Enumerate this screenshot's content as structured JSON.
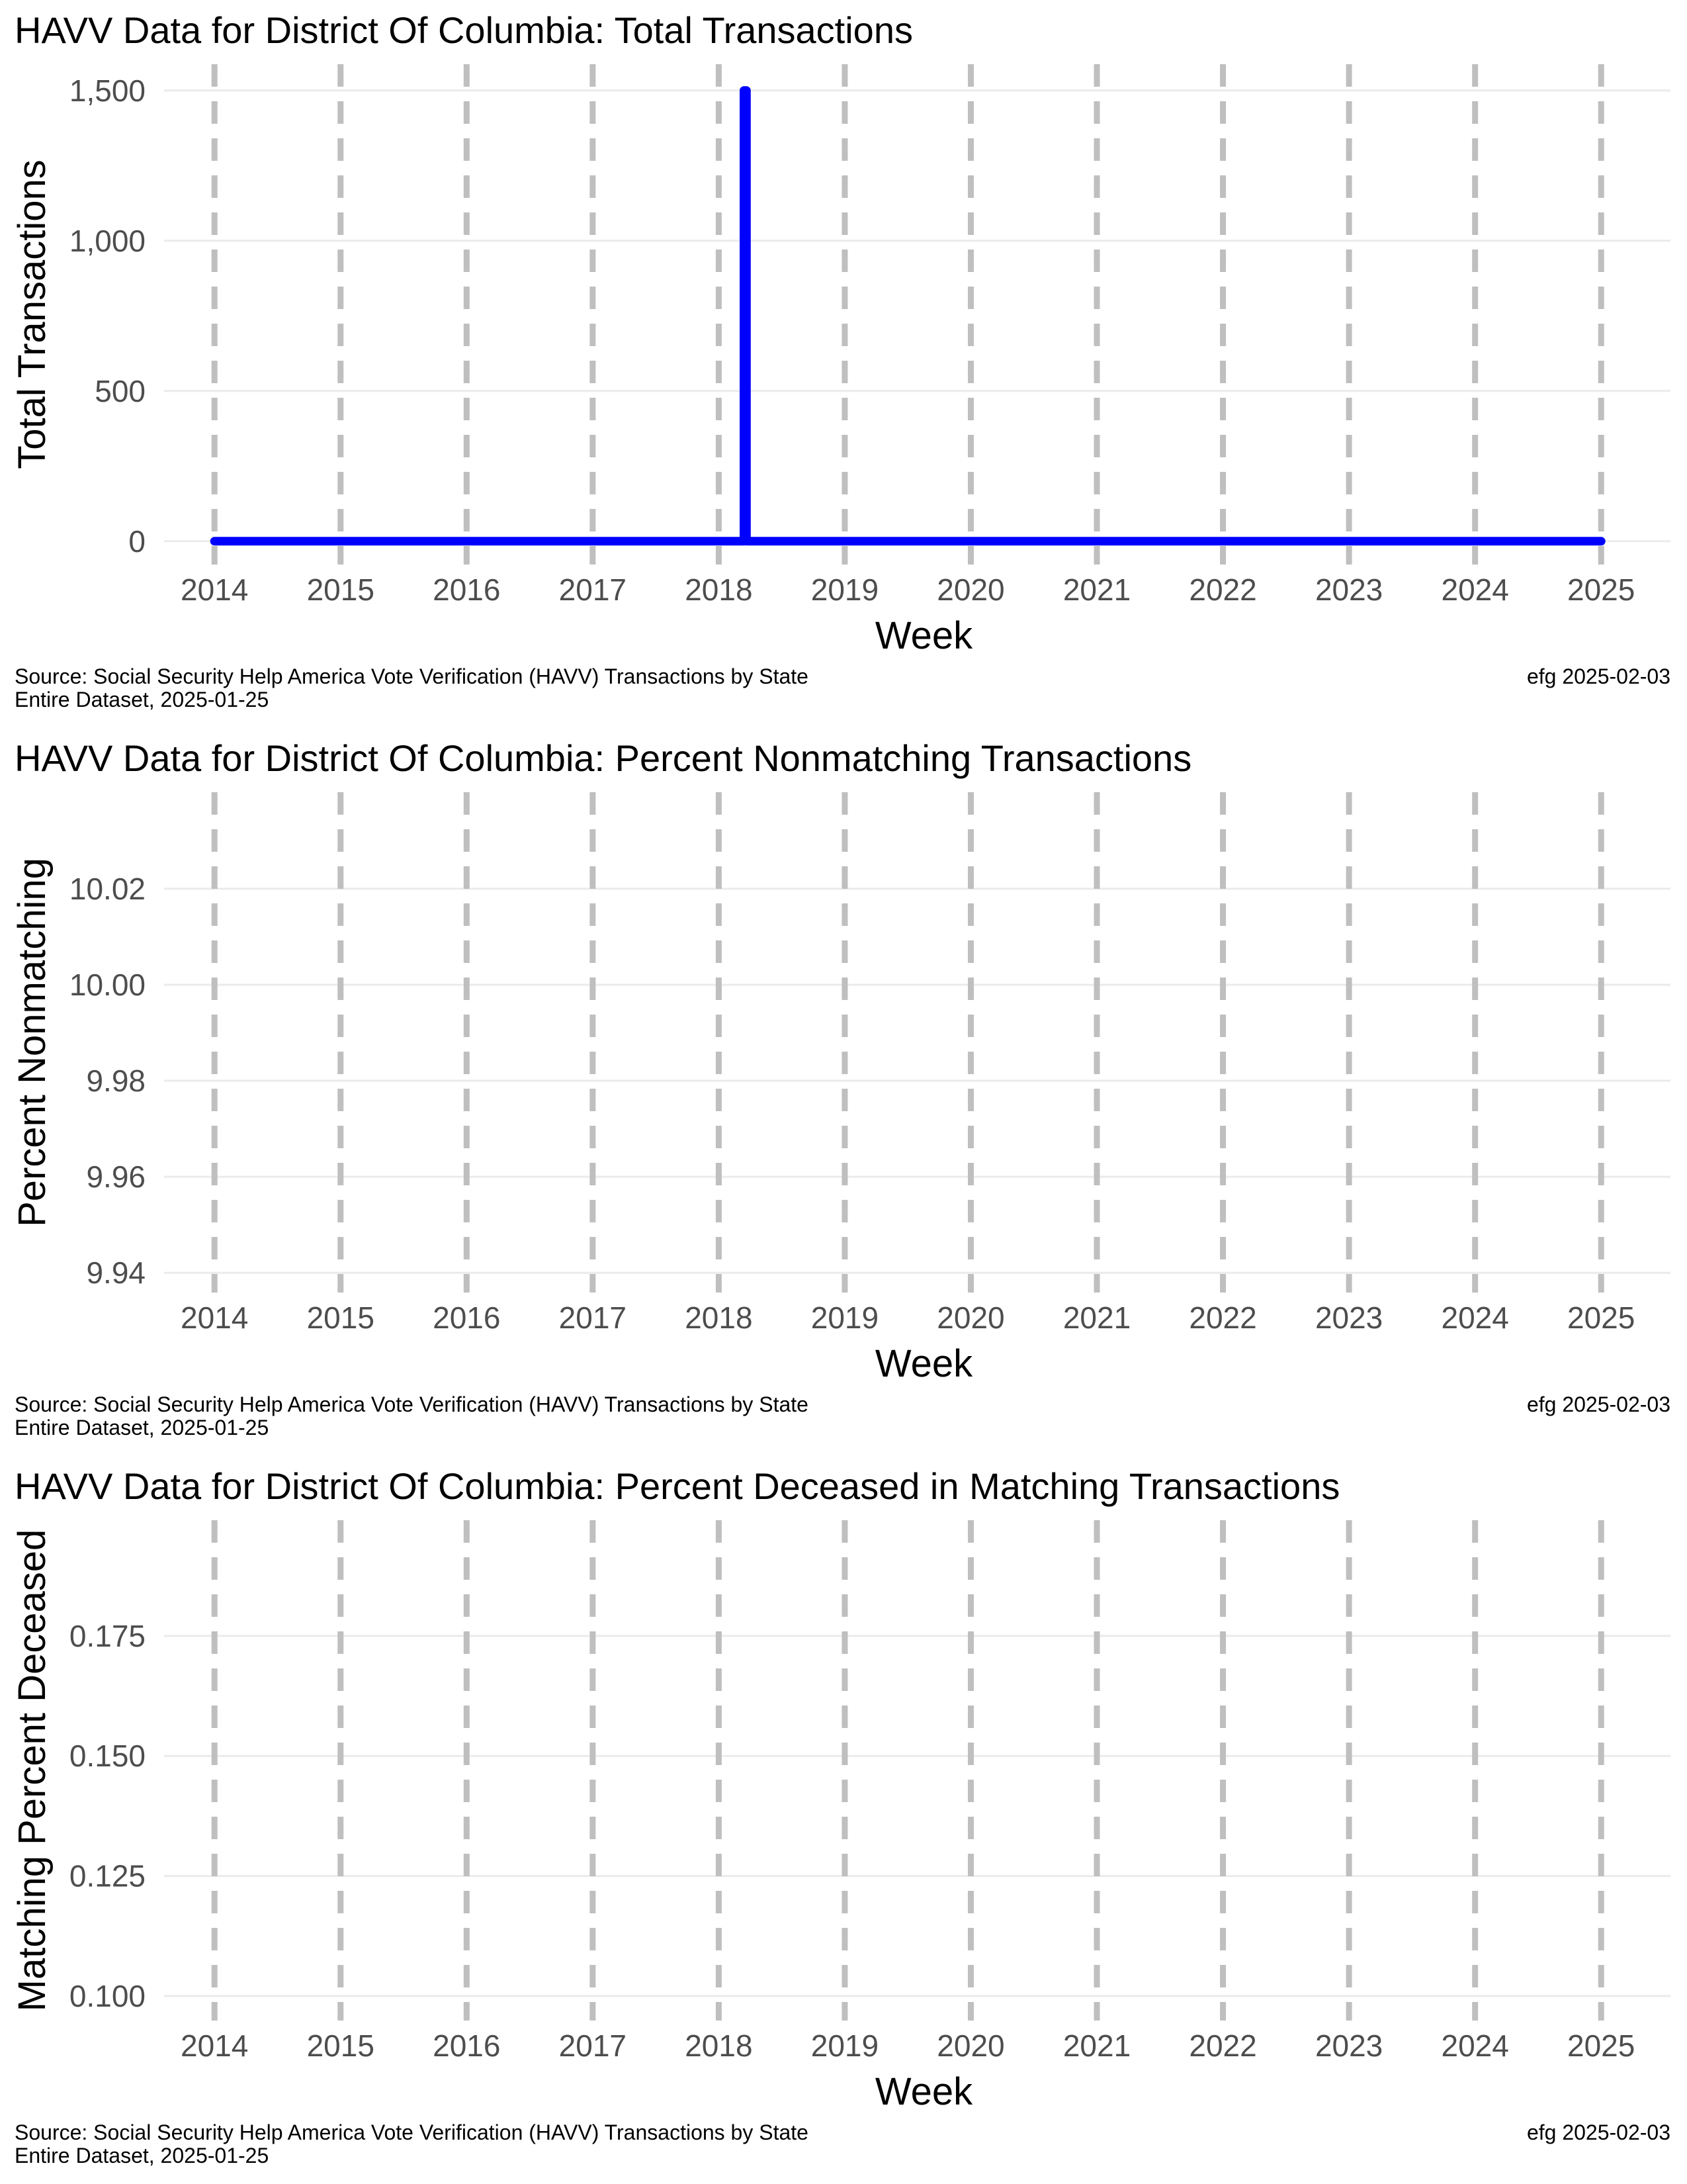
{
  "chart_data": [
    {
      "type": "line",
      "title": "HAVV Data for District Of Columbia:  Total Transactions",
      "xlabel": "Week",
      "ylabel": "Total Transactions",
      "x_ticks": [
        "2014",
        "2015",
        "2016",
        "2017",
        "2018",
        "2019",
        "2020",
        "2021",
        "2022",
        "2023",
        "2024",
        "2025"
      ],
      "y_ticks": [
        "0",
        "500",
        "1,000",
        "1,500"
      ],
      "ylim": [
        -60,
        1570
      ],
      "xlim": [
        2013.6,
        2025.55
      ],
      "year_markers": "dashed vertical lines at each year",
      "grid": true,
      "series": [
        {
          "color": "#0000ff",
          "points": [
            [
              2014.0,
              0
            ],
            [
              2018.2,
              0
            ],
            [
              2018.2,
              1500
            ],
            [
              2018.22,
              1500
            ],
            [
              2018.22,
              0
            ],
            [
              2025.0,
              0
            ]
          ]
        }
      ],
      "caption_left_1": "Source:  Social Security Help America Vote Verification (HAVV) Transactions by State",
      "caption_left_2": "Entire Dataset, 2025-01-25",
      "caption_right": "efg 2025-02-03"
    },
    {
      "type": "line",
      "title": "HAVV Data for District Of Columbia:  Percent Nonmatching Transactions",
      "xlabel": "Week",
      "ylabel": "Percent Nonmatching",
      "x_ticks": [
        "2014",
        "2015",
        "2016",
        "2017",
        "2018",
        "2019",
        "2020",
        "2021",
        "2022",
        "2023",
        "2024",
        "2025"
      ],
      "y_ticks": [
        "9.94",
        "9.96",
        "9.98",
        "10.00",
        "10.02"
      ],
      "ylim": [
        9.937,
        10.039
      ],
      "xlim": [
        2013.6,
        2025.55
      ],
      "year_markers": "dashed vertical lines at each year",
      "grid": true,
      "series": [],
      "caption_left_1": "Source:  Social Security Help America Vote Verification (HAVV) Transactions by State",
      "caption_left_2": "Entire Dataset, 2025-01-25",
      "caption_right": "efg 2025-02-03"
    },
    {
      "type": "line",
      "title": "HAVV Data for District Of Columbia:  Percent Deceased in Matching Transactions",
      "xlabel": "Week",
      "ylabel": "Matching Percent Deceased",
      "x_ticks": [
        "2014",
        "2015",
        "2016",
        "2017",
        "2018",
        "2019",
        "2020",
        "2021",
        "2022",
        "2023",
        "2024",
        "2025"
      ],
      "y_ticks": [
        "0.100",
        "0.125",
        "0.150",
        "0.175"
      ],
      "ylim": [
        0.096,
        0.198
      ],
      "xlim": [
        2013.6,
        2025.55
      ],
      "year_markers": "dashed vertical lines at each year",
      "grid": true,
      "series": [],
      "caption_left_1": "Source:  Social Security Help America Vote Verification (HAVV) Transactions by State",
      "caption_left_2": "Entire Dataset, 2025-01-25",
      "caption_right": "efg 2025-02-03"
    }
  ],
  "colors": {
    "grid": "#ebebeb",
    "year_marker": "#bfbfbf",
    "series": "#0000ff",
    "tick_text": "#4d4d4d"
  }
}
